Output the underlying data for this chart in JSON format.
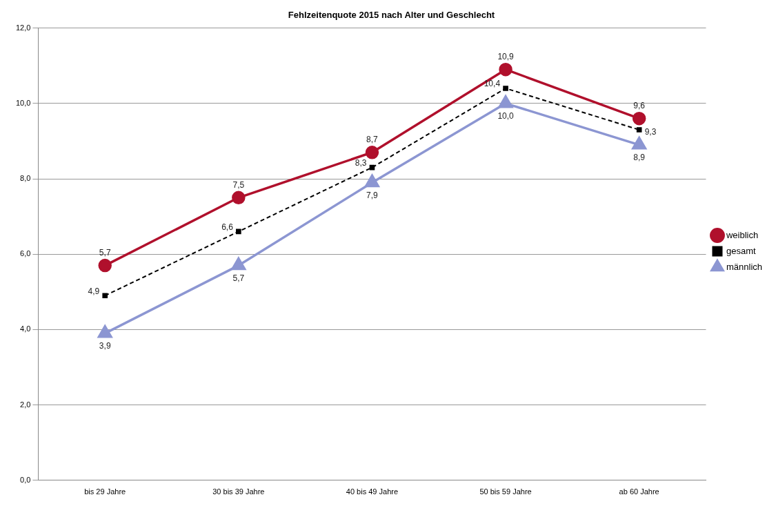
{
  "chart_data": {
    "type": "line",
    "title": "Fehlzeitenquote 2015 nach Alter und Geschlecht",
    "categories": [
      "bis 29 Jahre",
      "30 bis 39 Jahre",
      "40 bis 49 Jahre",
      "50 bis 59 Jahre",
      "ab 60 Jahre"
    ],
    "series": [
      {
        "name": "weiblich",
        "color": "#b0102c",
        "marker": "circle",
        "line_style": "solid",
        "values": [
          5.7,
          7.5,
          8.7,
          10.9,
          9.6
        ],
        "value_labels": [
          "5,7",
          "7,5",
          "8,7",
          "10,9",
          "9,6"
        ]
      },
      {
        "name": "gesamt",
        "color": "#000000",
        "marker": "square",
        "line_style": "dashed",
        "values": [
          4.9,
          6.6,
          8.3,
          10.4,
          9.3
        ],
        "value_labels": [
          "4,9",
          "6,6",
          "8,3",
          "10,4",
          "9,3"
        ]
      },
      {
        "name": "männlich",
        "color": "#8c96d2",
        "marker": "triangle",
        "line_style": "solid",
        "values": [
          3.9,
          5.7,
          7.9,
          10.0,
          8.9
        ],
        "value_labels": [
          "3,9",
          "5,7",
          "7,9",
          "10,0",
          "8,9"
        ]
      }
    ],
    "ylim": [
      0,
      12
    ],
    "yticks": [
      {
        "value": 0,
        "label": "0,0"
      },
      {
        "value": 2,
        "label": "2,0"
      },
      {
        "value": 4,
        "label": "4,0"
      },
      {
        "value": 6,
        "label": "6,0"
      },
      {
        "value": 8,
        "label": "8,0"
      },
      {
        "value": 10,
        "label": "10,0"
      },
      {
        "value": 12,
        "label": "12,0"
      }
    ],
    "grid": "y",
    "legend": "right"
  }
}
